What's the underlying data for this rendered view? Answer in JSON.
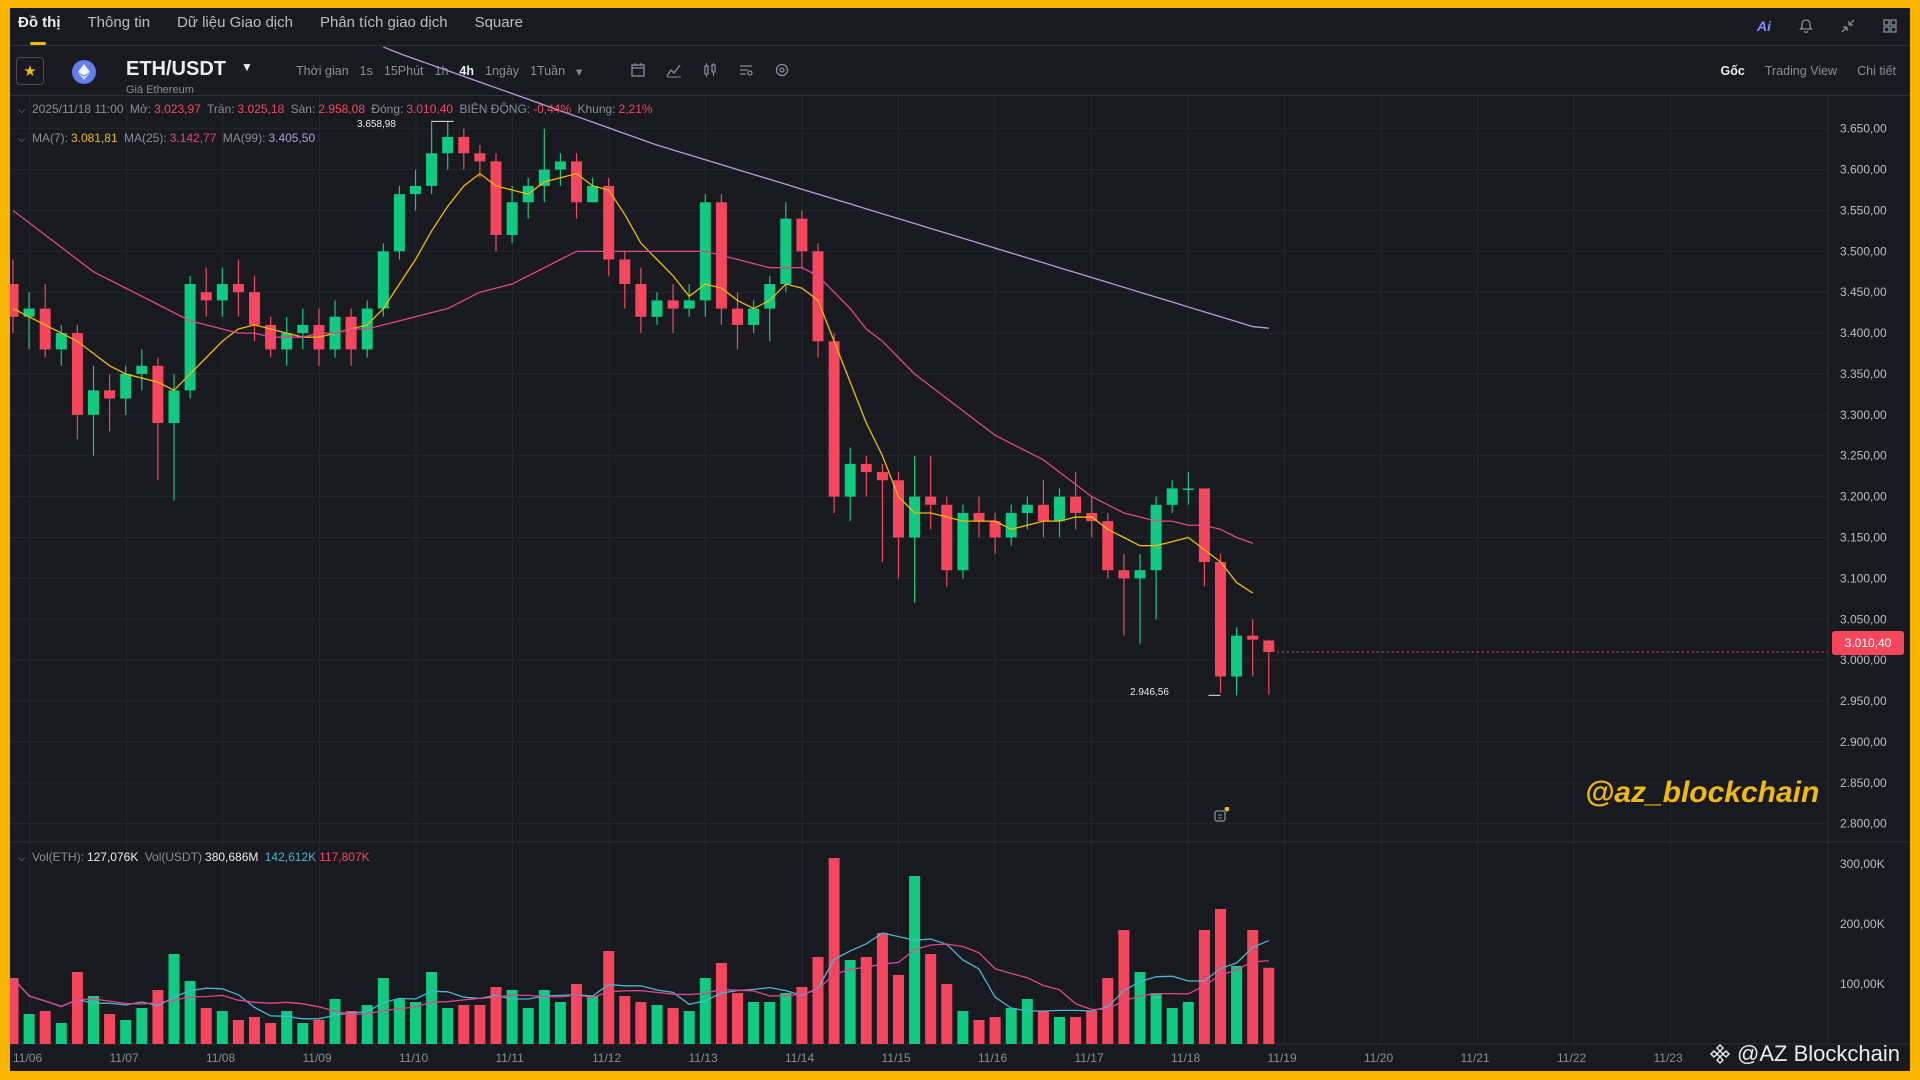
{
  "nav": {
    "tabs": [
      {
        "label": "Đồ thị",
        "active": true
      },
      {
        "label": "Thông tin"
      },
      {
        "label": "Dữ liệu Giao dịch"
      },
      {
        "label": "Phân tích giao dịch"
      },
      {
        "label": "Square"
      }
    ],
    "icons": [
      "ai-icon",
      "bell-icon",
      "collapse-icon",
      "grid-icon"
    ],
    "ai_label": "Ai"
  },
  "toolbar": {
    "pair": "ETH/USDT",
    "pair_sub": "Giá Ethereum",
    "intervals": [
      "Thời gian",
      "1s",
      "15Phút",
      "1h",
      "4h",
      "1ngày",
      "1Tuần"
    ],
    "active_interval": "4h",
    "views": [
      "Gốc",
      "Trading View",
      "Chi tiết"
    ],
    "active_view": "Gốc"
  },
  "ohlc": {
    "date": "2025/11/18 11:00",
    "open_label": "Mở:",
    "open": "3.023,97",
    "high_label": "Trần:",
    "high": "3.025,18",
    "low_label": "Sàn:",
    "low": "2.958,08",
    "close_label": "Đóng:",
    "close": "3.010,40",
    "change_label": "BIÊN ĐỘNG:",
    "change": "-0,44%",
    "range_label": "Khung:",
    "range": "2,21%"
  },
  "ma": {
    "ma7_label": "MA(7):",
    "ma7": "3.081,81",
    "ma25_label": "MA(25):",
    "ma25": "3.142,77",
    "ma99_label": "MA(99):",
    "ma99": "3.405,50"
  },
  "vol": {
    "eth_label": "Vol(ETH):",
    "eth": "127,076K",
    "usdt_label": "Vol(USDT)",
    "usdt": "380,686M",
    "ma1": "142,612K",
    "ma2": "117,807K"
  },
  "current_price": "3.010,40",
  "max_label": "3.658,98",
  "min_label": "2.946,56",
  "watermark": "@az_blockchain",
  "brand": "@AZ Blockchain",
  "chart_data": {
    "type": "candlestick",
    "price_axis": [
      "3.650,00",
      "3.600,00",
      "3.550,00",
      "3.500,00",
      "3.450,00",
      "3.400,00",
      "3.350,00",
      "3.300,00",
      "3.250,00",
      "3.200,00",
      "3.150,00",
      "3.100,00",
      "3.050,00",
      "3.000,00",
      "2.950,00",
      "2.900,00",
      "2.850,00",
      "2.800,00"
    ],
    "vol_axis": [
      "300,00K",
      "200,00K",
      "100,00K"
    ],
    "date_axis": [
      "11/06",
      "11/07",
      "11/08",
      "11/09",
      "11/10",
      "11/11",
      "11/12",
      "11/13",
      "11/14",
      "11/15",
      "11/16",
      "11/17",
      "11/18",
      "11/19",
      "11/20",
      "11/21",
      "11/22",
      "11/23"
    ],
    "ylim": [
      2780,
      3690
    ],
    "vol_ylim": [
      0,
      310
    ],
    "candles": [
      [
        3460,
        3420,
        3490,
        3400,
        110
      ],
      [
        3420,
        3430,
        3450,
        3380,
        50
      ],
      [
        3430,
        3380,
        3460,
        3370,
        55
      ],
      [
        3380,
        3400,
        3410,
        3360,
        35
      ],
      [
        3400,
        3300,
        3410,
        3270,
        120
      ],
      [
        3300,
        3330,
        3360,
        3250,
        80
      ],
      [
        3330,
        3320,
        3350,
        3280,
        50
      ],
      [
        3320,
        3350,
        3360,
        3300,
        40
      ],
      [
        3350,
        3360,
        3380,
        3330,
        60
      ],
      [
        3360,
        3290,
        3370,
        3220,
        90
      ],
      [
        3290,
        3330,
        3350,
        3195,
        150
      ],
      [
        3330,
        3460,
        3470,
        3320,
        105
      ],
      [
        3450,
        3440,
        3480,
        3420,
        60
      ],
      [
        3440,
        3460,
        3480,
        3420,
        55
      ],
      [
        3460,
        3450,
        3490,
        3420,
        40
      ],
      [
        3450,
        3410,
        3470,
        3390,
        45
      ],
      [
        3410,
        3380,
        3420,
        3370,
        35
      ],
      [
        3380,
        3400,
        3420,
        3360,
        55
      ],
      [
        3400,
        3410,
        3430,
        3380,
        35
      ],
      [
        3410,
        3380,
        3430,
        3360,
        40
      ],
      [
        3380,
        3420,
        3440,
        3370,
        75
      ],
      [
        3420,
        3380,
        3430,
        3360,
        55
      ],
      [
        3380,
        3430,
        3440,
        3370,
        65
      ],
      [
        3430,
        3500,
        3510,
        3420,
        110
      ],
      [
        3500,
        3570,
        3580,
        3490,
        75
      ],
      [
        3570,
        3580,
        3600,
        3550,
        70
      ],
      [
        3580,
        3620,
        3659,
        3570,
        120
      ],
      [
        3620,
        3640,
        3659,
        3600,
        60
      ],
      [
        3640,
        3620,
        3650,
        3600,
        65
      ],
      [
        3620,
        3610,
        3630,
        3590,
        65
      ],
      [
        3610,
        3520,
        3620,
        3500,
        95
      ],
      [
        3520,
        3560,
        3580,
        3510,
        90
      ],
      [
        3560,
        3580,
        3590,
        3540,
        60
      ],
      [
        3580,
        3600,
        3650,
        3560,
        90
      ],
      [
        3600,
        3610,
        3620,
        3580,
        70
      ],
      [
        3610,
        3560,
        3620,
        3540,
        100
      ],
      [
        3560,
        3580,
        3590,
        3560,
        80
      ],
      [
        3580,
        3490,
        3590,
        3470,
        155
      ],
      [
        3490,
        3460,
        3500,
        3430,
        80
      ],
      [
        3460,
        3420,
        3480,
        3400,
        70
      ],
      [
        3420,
        3440,
        3450,
        3410,
        65
      ],
      [
        3440,
        3430,
        3460,
        3400,
        60
      ],
      [
        3430,
        3440,
        3460,
        3420,
        55
      ],
      [
        3440,
        3560,
        3570,
        3420,
        110
      ],
      [
        3560,
        3430,
        3570,
        3410,
        135
      ],
      [
        3430,
        3410,
        3450,
        3380,
        85
      ],
      [
        3410,
        3430,
        3440,
        3400,
        70
      ],
      [
        3430,
        3460,
        3470,
        3390,
        70
      ],
      [
        3460,
        3540,
        3560,
        3450,
        85
      ],
      [
        3540,
        3500,
        3550,
        3480,
        95
      ],
      [
        3500,
        3390,
        3510,
        3370,
        145
      ],
      [
        3390,
        3200,
        3400,
        3180,
        310
      ],
      [
        3200,
        3240,
        3260,
        3170,
        140
      ],
      [
        3240,
        3230,
        3250,
        3200,
        145
      ],
      [
        3230,
        3220,
        3240,
        3120,
        185
      ],
      [
        3220,
        3150,
        3230,
        3100,
        115
      ],
      [
        3150,
        3200,
        3250,
        3070,
        280
      ],
      [
        3200,
        3190,
        3250,
        3160,
        150
      ],
      [
        3190,
        3110,
        3200,
        3090,
        100
      ],
      [
        3110,
        3180,
        3190,
        3100,
        55
      ],
      [
        3180,
        3170,
        3200,
        3150,
        40
      ],
      [
        3170,
        3150,
        3180,
        3130,
        45
      ],
      [
        3150,
        3180,
        3190,
        3140,
        60
      ],
      [
        3180,
        3190,
        3200,
        3160,
        75
      ],
      [
        3190,
        3170,
        3220,
        3150,
        55
      ],
      [
        3170,
        3200,
        3210,
        3150,
        45
      ],
      [
        3200,
        3180,
        3230,
        3160,
        45
      ],
      [
        3180,
        3170,
        3200,
        3150,
        55
      ],
      [
        3170,
        3110,
        3180,
        3100,
        110
      ],
      [
        3110,
        3100,
        3130,
        3030,
        190
      ],
      [
        3100,
        3110,
        3130,
        3020,
        120
      ],
      [
        3110,
        3190,
        3200,
        3050,
        85
      ],
      [
        3190,
        3210,
        3220,
        3180,
        60
      ],
      [
        3210,
        3210,
        3230,
        3190,
        70
      ],
      [
        3210,
        3120,
        3210,
        3090,
        190
      ],
      [
        3120,
        2980,
        3130,
        2960,
        225
      ],
      [
        2980,
        3030,
        3040,
        2957,
        130
      ],
      [
        3030,
        3025,
        3050,
        2980,
        190
      ],
      [
        3024,
        3010,
        3025,
        2958,
        127
      ]
    ],
    "ma7": [
      3430,
      3420,
      3410,
      3400,
      3390,
      3375,
      3360,
      3350,
      3345,
      3340,
      3330,
      3350,
      3370,
      3390,
      3405,
      3410,
      3405,
      3400,
      3395,
      3395,
      3400,
      3405,
      3410,
      3430,
      3460,
      3490,
      3525,
      3555,
      3580,
      3595,
      3580,
      3575,
      3570,
      3585,
      3590,
      3595,
      3580,
      3575,
      3545,
      3510,
      3490,
      3470,
      3445,
      3460,
      3455,
      3440,
      3430,
      3440,
      3460,
      3455,
      3440,
      3390,
      3340,
      3290,
      3250,
      3200,
      3180,
      3180,
      3175,
      3170,
      3170,
      3170,
      3160,
      3165,
      3170,
      3170,
      3175,
      3175,
      3160,
      3150,
      3140,
      3140,
      3145,
      3150,
      3135,
      3120,
      3095,
      3082
    ],
    "ma25": [
      3550,
      3535,
      3520,
      3505,
      3490,
      3475,
      3465,
      3455,
      3445,
      3435,
      3425,
      3415,
      3410,
      3405,
      3400,
      3400,
      3395,
      3395,
      3395,
      3400,
      3400,
      3405,
      3405,
      3410,
      3415,
      3420,
      3425,
      3430,
      3440,
      3450,
      3455,
      3460,
      3470,
      3480,
      3490,
      3500,
      3500,
      3500,
      3500,
      3500,
      3500,
      3500,
      3500,
      3500,
      3495,
      3490,
      3485,
      3480,
      3480,
      3480,
      3470,
      3450,
      3430,
      3405,
      3390,
      3370,
      3350,
      3335,
      3320,
      3305,
      3290,
      3275,
      3265,
      3255,
      3245,
      3230,
      3215,
      3200,
      3190,
      3180,
      3175,
      3170,
      3170,
      3165,
      3165,
      3160,
      3150,
      3143
    ],
    "ma99": [
      3750,
      3742,
      3735,
      3728,
      3721,
      3714,
      3707,
      3700,
      3693,
      3686,
      3679,
      3672,
      3665,
      3658,
      3651,
      3644,
      3637,
      3630,
      3624,
      3618,
      3612,
      3606,
      3600,
      3594,
      3588,
      3582,
      3576,
      3570,
      3564,
      3558,
      3552,
      3546,
      3540,
      3534,
      3528,
      3522,
      3516,
      3510,
      3504,
      3498,
      3492,
      3486,
      3480,
      3474,
      3468,
      3462,
      3456,
      3450,
      3444,
      3438,
      3432,
      3426,
      3420,
      3414,
      3408,
      3406
    ]
  }
}
